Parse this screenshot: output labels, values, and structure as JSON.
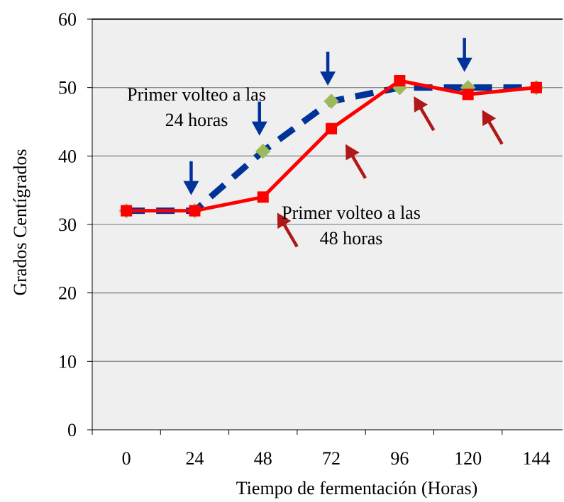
{
  "chart_data": {
    "type": "line",
    "x": [
      0,
      24,
      48,
      72,
      96,
      120,
      144
    ],
    "categories": [
      "0",
      "24",
      "48",
      "72",
      "96",
      "120",
      "144"
    ],
    "y_ticks": [
      "0",
      "10",
      "20",
      "30",
      "40",
      "50",
      "60"
    ],
    "ylim": [
      0,
      60
    ],
    "xlabel": "Tiempo de fermentación (Horas)",
    "ylabel": "Grados Centígrados",
    "grid": "horizontal",
    "legend": "none",
    "series": [
      {
        "values": [
          32,
          32,
          40.7,
          48,
          50,
          50,
          50
        ],
        "line_color": "#003399",
        "marker_color": "#9BBB59",
        "line_style": "dashed",
        "marker": "diamond"
      },
      {
        "values": [
          32,
          32,
          34,
          44,
          51,
          49,
          50
        ],
        "line_color": "#FF0000",
        "marker_color": "#FF0000",
        "line_style": "solid",
        "marker": "square"
      }
    ],
    "annotations": [
      {
        "text_line1": "Primer volteo a las",
        "text_line2": "24 horas",
        "series": 0
      },
      {
        "text_line1": "Primer volteo a las",
        "text_line2": "48 horas",
        "series": 1
      }
    ],
    "arrows_down": {
      "color": "#003399",
      "x": [
        24,
        48,
        72,
        120
      ]
    },
    "arrows_diag": {
      "color": "#B01818",
      "x": [
        48,
        72,
        96,
        120
      ]
    },
    "colors": {
      "plot_background": "#EFEFEF",
      "gridline": "#8C8C8C",
      "axis": "#000000"
    }
  }
}
